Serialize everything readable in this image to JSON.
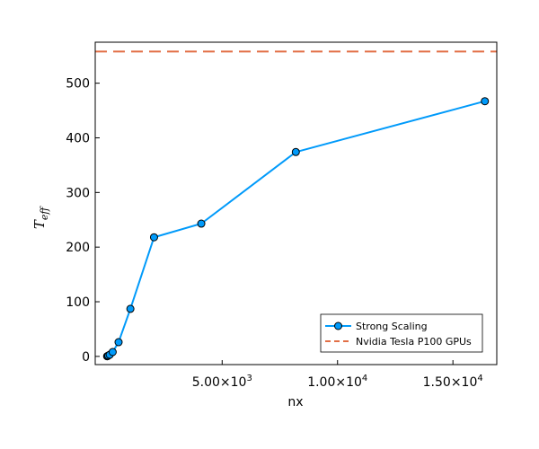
{
  "chart_data": {
    "type": "line",
    "xlabel": "nx",
    "ylabel": "T",
    "ylabel_sub": "eff",
    "xlim": [
      -500,
      16900
    ],
    "ylim": [
      -15,
      575
    ],
    "grid": false,
    "legend_position": "bottom-right",
    "x_ticks": [
      {
        "value": 5000,
        "mantissa": "5.00×10",
        "exp": "3"
      },
      {
        "value": 10000,
        "mantissa": "1.00×10",
        "exp": "4"
      },
      {
        "value": 15000,
        "mantissa": "1.50×10",
        "exp": "4"
      }
    ],
    "y_ticks": [
      {
        "value": 0,
        "label": "0"
      },
      {
        "value": 100,
        "label": "100"
      },
      {
        "value": 200,
        "label": "200"
      },
      {
        "value": 300,
        "label": "300"
      },
      {
        "value": 400,
        "label": "400"
      },
      {
        "value": 500,
        "label": "500"
      }
    ],
    "series": [
      {
        "name": "Strong Scaling",
        "color": "#009AFA",
        "marker": "circle",
        "x": [
          16,
          32,
          64,
          128,
          256,
          512,
          1024,
          2048,
          4096,
          8192,
          16384
        ],
        "y": [
          0.3,
          0.5,
          1.5,
          3,
          8,
          26,
          87,
          218,
          243,
          374,
          467
        ]
      },
      {
        "name": "Nvidia Tesla P100 GPUs",
        "color": "#E26F46",
        "style": "dashed",
        "hline": 558
      }
    ]
  }
}
